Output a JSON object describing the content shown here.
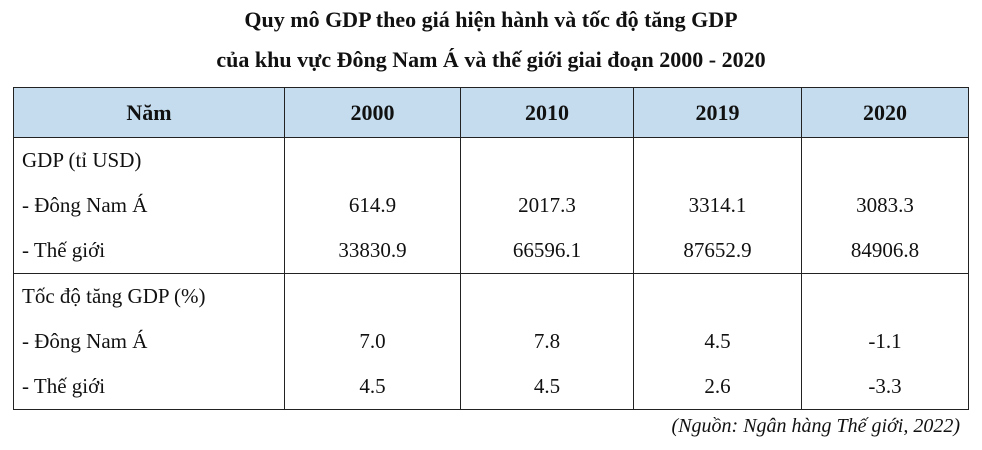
{
  "title": {
    "line1": "Quy mô GDP theo giá hiện hành và tốc độ tăng GDP",
    "line2": "của khu vực Đông Nam Á và thế giới giai đoạn 2000 - 2020"
  },
  "table": {
    "headers": [
      "Năm",
      "2000",
      "2010",
      "2019",
      "2020"
    ],
    "groups": [
      {
        "title": "GDP (tỉ USD)",
        "rows": [
          {
            "label": "- Đông Nam Á",
            "values": [
              "614.9",
              "2017.3",
              "3314.1",
              "3083.3"
            ]
          },
          {
            "label": "- Thế giới",
            "values": [
              "33830.9",
              "66596.1",
              "87652.9",
              "84906.8"
            ]
          }
        ]
      },
      {
        "title": "Tốc độ tăng GDP (%)",
        "rows": [
          {
            "label": "- Đông Nam Á",
            "values": [
              "7.0",
              "7.8",
              "4.5",
              "-1.1"
            ]
          },
          {
            "label": "- Thế giới",
            "values": [
              "4.5",
              "4.5",
              "2.6",
              "-3.3"
            ]
          }
        ]
      }
    ]
  },
  "source": "(Nguồn: Ngân hàng Thế giới, 2022)",
  "colors": {
    "header_background": "#c4dced"
  }
}
